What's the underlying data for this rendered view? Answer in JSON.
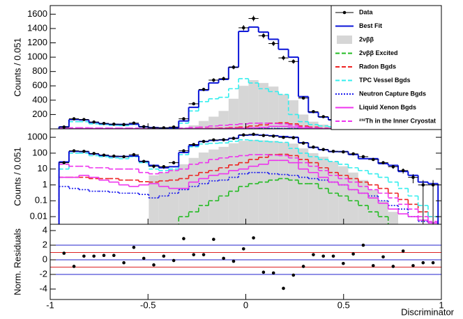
{
  "chart_data": {
    "type": "histogram",
    "xlabel": "Discriminator",
    "xlim": [
      -1,
      1
    ],
    "xticks": [
      -1,
      -0.5,
      0,
      0.5,
      1
    ],
    "legend": "upper right",
    "bins": [
      -0.955,
      -0.904,
      -0.853,
      -0.802,
      -0.751,
      -0.7,
      -0.649,
      -0.598,
      -0.547,
      -0.496,
      -0.445,
      -0.394,
      -0.343,
      -0.292,
      -0.241,
      -0.19,
      -0.139,
      -0.088,
      -0.037,
      0.014,
      0.065,
      0.116,
      0.167,
      0.218,
      0.269,
      0.32,
      0.371,
      0.422,
      0.473,
      0.524,
      0.575,
      0.626,
      0.677,
      0.728,
      0.779,
      0.83,
      0.881,
      0.932,
      0.983
    ],
    "panels": [
      {
        "ylabel": "Counts / 0.051",
        "log": false,
        "ylim": [
          0,
          1720
        ],
        "yticks": [
          200,
          400,
          600,
          800,
          1000,
          1200,
          1400,
          1600
        ]
      },
      {
        "ylabel": "Counts / 0.051",
        "log": true,
        "ylim": [
          0.0033,
          3400
        ],
        "yticks": [
          0.01,
          0.1,
          1,
          10,
          100,
          1000
        ]
      }
    ],
    "series": [
      {
        "name": "2νββ",
        "style": "filled",
        "color": "#d6d6d6",
        "values": [
          null,
          null,
          null,
          null,
          null,
          null,
          null,
          null,
          null,
          4,
          6,
          10,
          20,
          50,
          110,
          170,
          250,
          420,
          600,
          680,
          640,
          590,
          480,
          400,
          200,
          100,
          60,
          30,
          15,
          6,
          2,
          0.5,
          0.1,
          0.02,
          null,
          null,
          null,
          null
        ]
      },
      {
        "name": "2νββ Excited",
        "style": "dashed",
        "color": "#22bb22",
        "values": [
          null,
          null,
          null,
          null,
          null,
          null,
          null,
          null,
          null,
          null,
          null,
          null,
          0.01,
          0.02,
          0.05,
          0.1,
          0.2,
          0.4,
          0.8,
          1.2,
          1.5,
          2,
          2.5,
          2,
          1.2,
          1.2,
          0.6,
          0.3,
          0.2,
          0.1,
          0.05,
          0.02,
          0.01,
          null,
          null,
          null,
          null,
          null
        ]
      },
      {
        "name": "Radon Bgds",
        "style": "dashed",
        "color": "#ee2222",
        "values": [
          3,
          3,
          3,
          2.5,
          2.5,
          2.5,
          2,
          2,
          1.6,
          1.5,
          1.8,
          2,
          2.5,
          4,
          6,
          8,
          12,
          18,
          25,
          40,
          55,
          80,
          85,
          70,
          40,
          25,
          12,
          6,
          4,
          2.5,
          1.5,
          1,
          0.6,
          0.3,
          0.12,
          0.06,
          0.02,
          0.01
        ]
      },
      {
        "name": "TPC Vessel Bgds",
        "style": "dashed",
        "color": "#33eeee",
        "values": [
          10,
          100,
          100,
          70,
          60,
          50,
          45,
          60,
          25,
          10,
          8,
          10,
          80,
          250,
          380,
          420,
          440,
          560,
          700,
          640,
          560,
          520,
          480,
          200,
          100,
          60,
          40,
          30,
          20,
          12,
          8,
          5,
          3,
          1.5,
          0.6,
          0.2,
          0.05,
          0.01
        ]
      },
      {
        "name": "Neutron Capture Bgds",
        "style": "dotted",
        "color": "#1a1aee",
        "values": [
          0.8,
          0.6,
          0.5,
          0.4,
          0.4,
          0.35,
          0.3,
          0.3,
          0.25,
          0.15,
          0.2,
          0.3,
          0.5,
          0.8,
          1.2,
          1.8,
          2,
          3,
          5,
          6,
          6,
          5,
          4.5,
          4,
          3,
          2.5,
          2,
          1.5,
          1,
          0.5,
          0.3,
          0.2,
          0.1,
          0.05,
          0.03,
          0.01,
          0.005,
          0.004
        ]
      },
      {
        "name": "Liquid Xenon Bgds",
        "style": "solid",
        "color": "#ee33ee",
        "values": [
          3,
          3,
          4,
          3,
          2,
          1.5,
          1,
          0.8,
          1,
          1.2,
          0.8,
          0.6,
          0.6,
          1.5,
          2.5,
          4,
          5,
          8,
          10,
          15,
          20,
          35,
          35,
          25,
          10,
          6,
          3,
          1.5,
          1,
          0.5,
          0.3,
          0.15,
          0.07,
          0.03,
          0.015,
          0.01,
          0.006,
          0.004
        ]
      },
      {
        "name": "²³²Th in the Inner Cryostat",
        "style": "dashed",
        "color": "#ee33ee",
        "values": [
          20,
          15,
          15,
          12,
          12,
          10,
          10,
          10,
          6,
          5,
          6,
          8,
          10,
          20,
          25,
          40,
          50,
          60,
          70,
          80,
          80,
          75,
          70,
          50,
          25,
          15,
          8,
          4,
          2.5,
          1.5,
          0.8,
          0.5,
          0.3,
          0.15,
          0.06,
          0.03,
          0.01,
          0.005
        ]
      },
      {
        "name": "Best Fit",
        "style": "fit",
        "color": "#0a14d8",
        "values": [
          28,
          130,
          125,
          90,
          72,
          62,
          62,
          66,
          30,
          17,
          12,
          14,
          110,
          300,
          540,
          640,
          690,
          860,
          1360,
          1420,
          1350,
          1250,
          1110,
          1000,
          450,
          230,
          165,
          125,
          125,
          82,
          45,
          45,
          22,
          17,
          7,
          4,
          1.5,
          1.2
        ]
      },
      {
        "name": "Data",
        "style": "points",
        "color": "#000000",
        "values": [
          25,
          140,
          130,
          95,
          75,
          65,
          60,
          80,
          30,
          15,
          14,
          25,
          140,
          350,
          550,
          680,
          700,
          860,
          1410,
          1540,
          1300,
          1190,
          990,
          940,
          430,
          240,
          170,
          130,
          120,
          90,
          60,
          40,
          25,
          14,
          8,
          3,
          1,
          1
        ]
      }
    ],
    "legend_order": [
      8,
      7,
      0,
      1,
      2,
      3,
      4,
      5,
      6
    ],
    "residuals": {
      "ylabel": "Norm. Residuals",
      "ylim": [
        -5.43,
        4.86
      ],
      "yticks": [
        -4,
        -2,
        0,
        2,
        4
      ],
      "reference_lines": [
        {
          "value": 2,
          "color": "#2222cc"
        },
        {
          "value": 0,
          "color": "#2222cc"
        },
        {
          "value": -2,
          "color": "#2222cc"
        },
        {
          "value": 1,
          "color": "#dd2222"
        },
        {
          "value": -1,
          "color": "#dd2222"
        }
      ],
      "values": [
        0.9,
        -0.9,
        0.5,
        0.5,
        0.6,
        0.6,
        -0.4,
        1.7,
        0.2,
        -0.7,
        0.5,
        -0.1,
        2.9,
        0.7,
        0.7,
        2.8,
        0.2,
        -0.2,
        1.5,
        3.0,
        -1.7,
        -1.8,
        -3.9,
        -2.1,
        -0.9,
        0.7,
        0.5,
        0.5,
        -0.5,
        0.8,
        2.0,
        -0.8,
        0.4,
        -0.9,
        1.2,
        -0.8,
        -0.4,
        -0.4
      ]
    }
  }
}
